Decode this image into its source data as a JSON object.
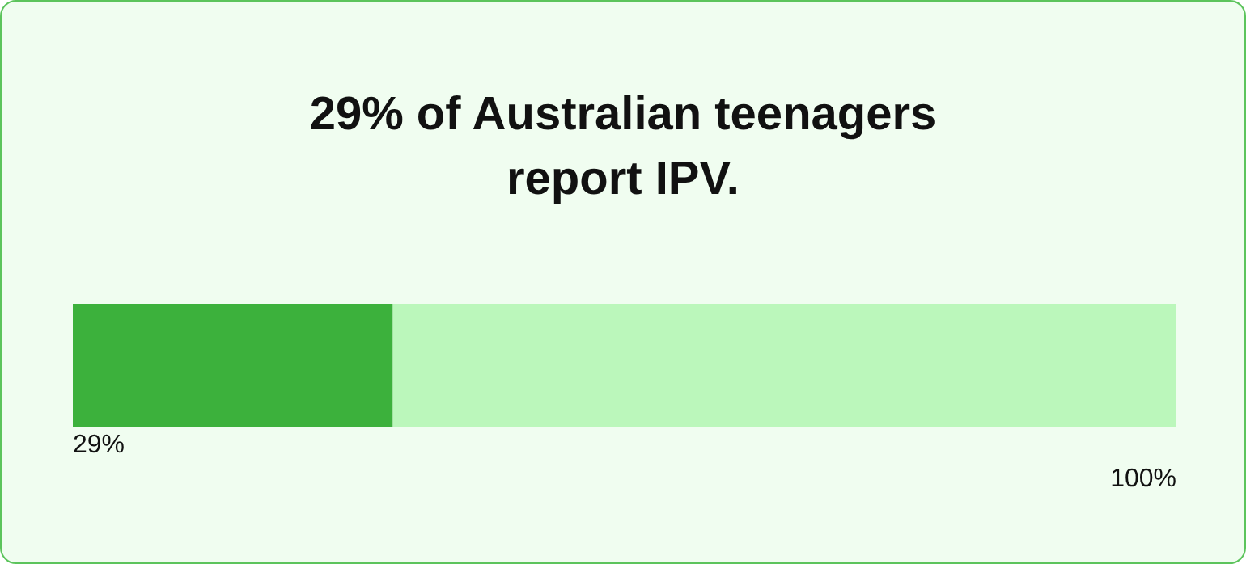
{
  "chart_data": {
    "type": "bar",
    "title": "29% of Australian teenagers report IPV.",
    "orientation": "horizontal",
    "stacked": true,
    "categories": [
      null
    ],
    "series": [
      {
        "color": "#3cb13c",
        "values": [
          29
        ],
        "value_labels": [
          "29%"
        ]
      },
      {
        "color": "#bbf7bb",
        "values": [
          71
        ]
      }
    ],
    "totals": [
      "100%"
    ],
    "grid": false,
    "legend": false
  }
}
